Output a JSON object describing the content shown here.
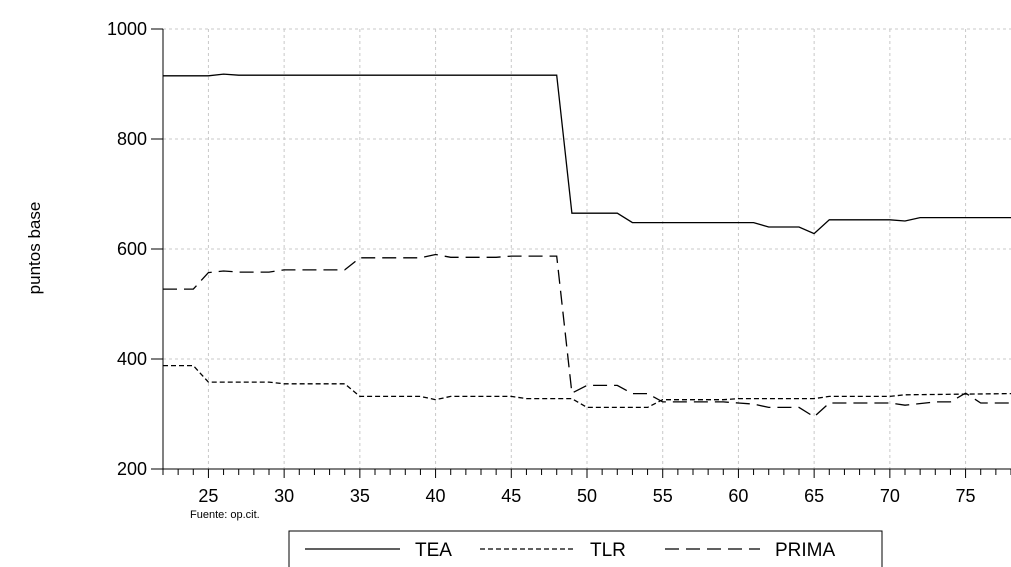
{
  "chart_data": {
    "type": "line",
    "title": "",
    "xlabel": "",
    "ylabel": "puntos base",
    "source": "Fuente: op.cit.",
    "xlim": [
      22,
      78
    ],
    "ylim": [
      200,
      1000
    ],
    "x_ticks": [
      25,
      30,
      35,
      40,
      45,
      50,
      55,
      60,
      65,
      70,
      75
    ],
    "y_ticks": [
      200,
      400,
      600,
      800,
      1000
    ],
    "grid": true,
    "legend_position": "bottom",
    "series": [
      {
        "name": "TEA",
        "dash": "solid",
        "points": [
          [
            22,
            915
          ],
          [
            25,
            915
          ],
          [
            26,
            918
          ],
          [
            27,
            916
          ],
          [
            48,
            916
          ],
          [
            49,
            665
          ],
          [
            52,
            665
          ],
          [
            53,
            648
          ],
          [
            61,
            648
          ],
          [
            62,
            640
          ],
          [
            64,
            640
          ],
          [
            65,
            628
          ],
          [
            66,
            653
          ],
          [
            70,
            653
          ],
          [
            71,
            651
          ],
          [
            72,
            657
          ],
          [
            78,
            657
          ]
        ]
      },
      {
        "name": "TLR",
        "dash": "short",
        "points": [
          [
            22,
            388
          ],
          [
            24,
            388
          ],
          [
            25,
            358
          ],
          [
            29,
            358
          ],
          [
            30,
            355
          ],
          [
            34,
            355
          ],
          [
            35,
            332
          ],
          [
            39,
            332
          ],
          [
            40,
            326
          ],
          [
            41,
            332
          ],
          [
            45,
            332
          ],
          [
            46,
            328
          ],
          [
            49,
            328
          ],
          [
            50,
            312
          ],
          [
            54,
            312
          ],
          [
            55,
            326
          ],
          [
            59,
            326
          ],
          [
            60,
            328
          ],
          [
            65,
            328
          ],
          [
            66,
            332
          ],
          [
            70,
            332
          ],
          [
            71,
            335
          ],
          [
            78,
            337
          ]
        ]
      },
      {
        "name": "PRIMA",
        "dash": "long",
        "points": [
          [
            22,
            527
          ],
          [
            24,
            527
          ],
          [
            25,
            557
          ],
          [
            26,
            560
          ],
          [
            27,
            558
          ],
          [
            29,
            558
          ],
          [
            30,
            562
          ],
          [
            34,
            562
          ],
          [
            35,
            584
          ],
          [
            39,
            584
          ],
          [
            40,
            590
          ],
          [
            41,
            585
          ],
          [
            44,
            585
          ],
          [
            45,
            587
          ],
          [
            48,
            587
          ],
          [
            49,
            338
          ],
          [
            50,
            352
          ],
          [
            52,
            352
          ],
          [
            53,
            337
          ],
          [
            54,
            337
          ],
          [
            55,
            322
          ],
          [
            59,
            322
          ],
          [
            60,
            320
          ],
          [
            61,
            318
          ],
          [
            62,
            312
          ],
          [
            64,
            312
          ],
          [
            65,
            295
          ],
          [
            66,
            320
          ],
          [
            70,
            320
          ],
          [
            71,
            316
          ],
          [
            73,
            322
          ],
          [
            74,
            322
          ],
          [
            75,
            338
          ],
          [
            76,
            320
          ],
          [
            78,
            320
          ]
        ]
      }
    ]
  }
}
